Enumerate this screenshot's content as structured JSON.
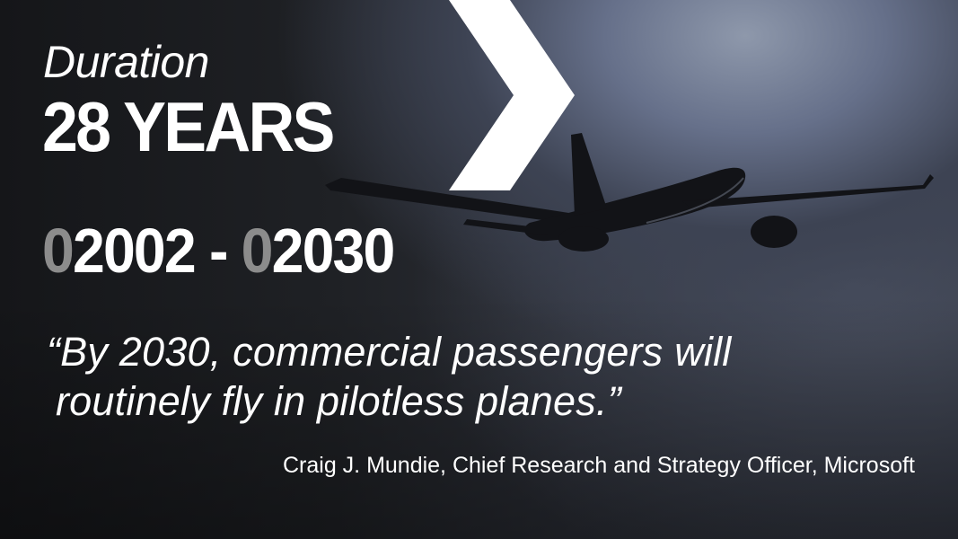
{
  "duration": {
    "label": "Duration",
    "value": "28 YEARS"
  },
  "range": {
    "start_prefix": "0",
    "start_rest": "2002",
    "separator": " - ",
    "end_prefix": "0",
    "end_rest": "2030"
  },
  "quote": {
    "line1": "“By 2030, commercial passengers will",
    "line2": "routinely fly in pilotless planes.”"
  },
  "attribution": "Craig J. Mundie, Chief Research and Strategy Officer, Microsoft",
  "colors": {
    "text": "#ffffff",
    "leading_zero": "#8c8c8c",
    "chevron": "#ffffff"
  },
  "icons": [
    "chevron-right-icon",
    "airplane-icon"
  ]
}
